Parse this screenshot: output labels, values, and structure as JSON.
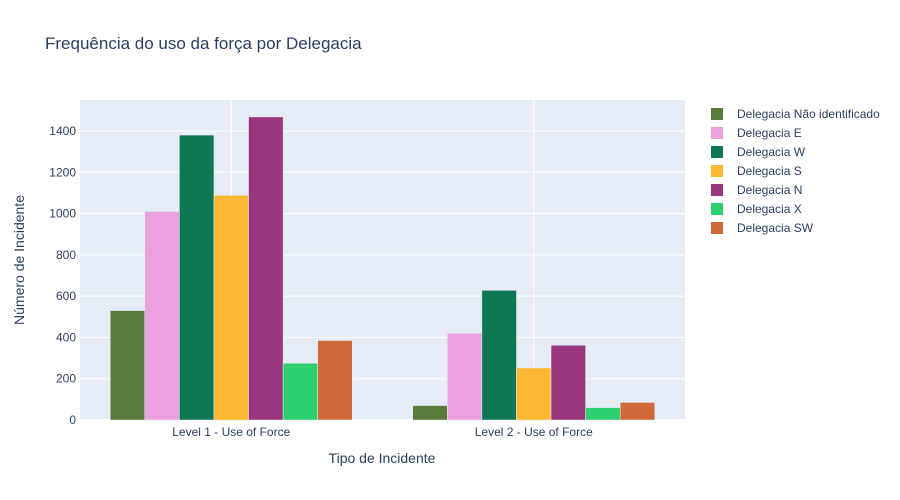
{
  "chart_data": {
    "type": "bar",
    "title": "Frequência do uso da força por Delegacia",
    "xlabel": "Tipo de Incidente",
    "ylabel": "Número de Incidente",
    "categories": [
      "Level 1 - Use of Force",
      "Level 2 - Use of Force"
    ],
    "ylim": [
      0,
      1550
    ],
    "yticks": [
      0,
      200,
      400,
      600,
      800,
      1000,
      1200,
      1400
    ],
    "grid": true,
    "legend_position": "right",
    "series": [
      {
        "name": "Delegacia Não identificado",
        "color": "#5a7a3c",
        "values": [
          530,
          70
        ]
      },
      {
        "name": "Delegacia E",
        "color": "#eba1df",
        "values": [
          1010,
          420
        ]
      },
      {
        "name": "Delegacia W",
        "color": "#107754",
        "values": [
          1380,
          628
        ]
      },
      {
        "name": "Delegacia S",
        "color": "#fdb731",
        "values": [
          1088,
          252
        ]
      },
      {
        "name": "Delegacia N",
        "color": "#98377d",
        "values": [
          1468,
          362
        ]
      },
      {
        "name": "Delegacia X",
        "color": "#2dcf6f",
        "values": [
          275,
          60
        ]
      },
      {
        "name": "Delegacia SW",
        "color": "#cf6a3a",
        "values": [
          385,
          85
        ]
      }
    ]
  }
}
